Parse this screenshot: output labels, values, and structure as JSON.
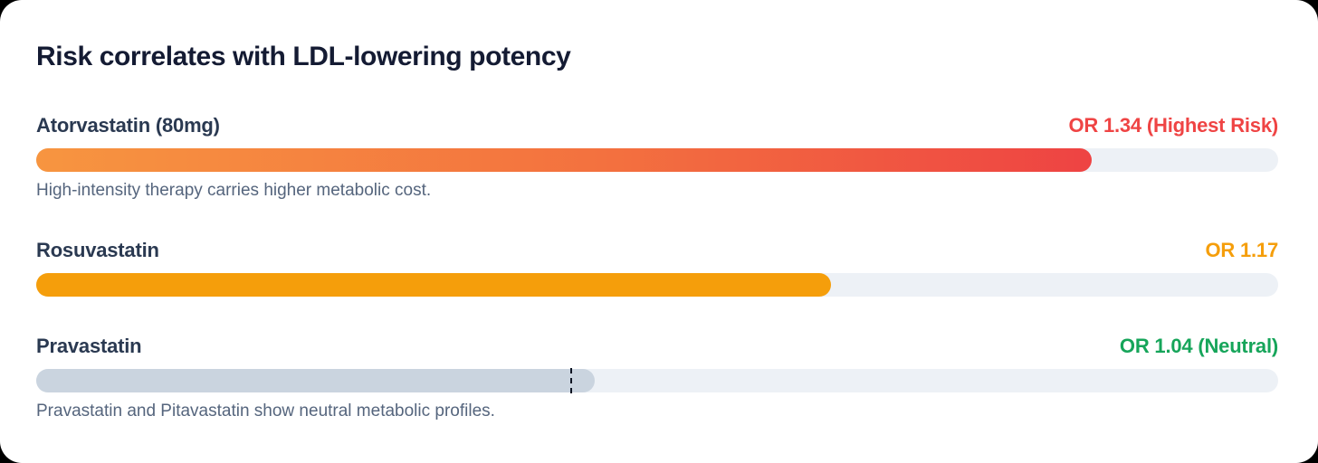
{
  "page": {
    "outer_background": "#000000",
    "card_background": "#ffffff"
  },
  "chart_data": {
    "type": "bar",
    "orientation": "horizontal",
    "title": "Risk correlates with LDL-lowering potency",
    "value_unit": "odds ratio (OR)",
    "track_color": "#edf1f6",
    "bars": [
      {
        "label": "Atorvastatin (80mg)",
        "value": 1.34,
        "value_label": "OR 1.34 (Highest Risk)",
        "value_color": "#ef4444",
        "fill_percent": 85,
        "fill_background": "linear-gradient(90deg, #f79540 0%, #f3703f 55%, #ee4343 100%)",
        "caption": "High-intensity therapy carries higher metabolic cost."
      },
      {
        "label": "Rosuvastatin",
        "value": 1.17,
        "value_label": "OR 1.17",
        "value_color": "#f59e0b",
        "fill_percent": 64,
        "fill_background": "#f59e0b"
      },
      {
        "label": "Pravastatin",
        "value": 1.04,
        "value_label": "OR 1.04 (Neutral)",
        "value_color": "#16a55a",
        "fill_percent": 45,
        "fill_background": "#cad4df",
        "neutral_marker_percent": 43,
        "neutral_marker_meaning": "OR 1.0 neutral line",
        "caption": "Pravastatin and Pitavastatin show neutral metabolic profiles."
      }
    ]
  }
}
